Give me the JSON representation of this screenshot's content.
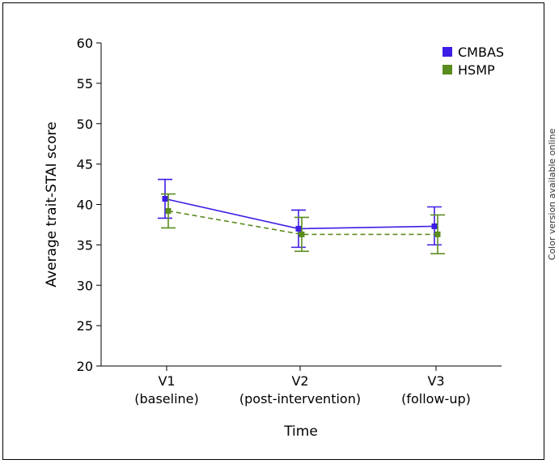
{
  "side_note": "Color version available online",
  "chart_data": {
    "type": "line",
    "xlabel": "Time",
    "ylabel": "Average trait-STAI score",
    "ylim": [
      20,
      60
    ],
    "yticks": [
      20,
      25,
      30,
      35,
      40,
      45,
      50,
      55,
      60
    ],
    "categories": [
      [
        "V1",
        "(baseline)"
      ],
      [
        "V2",
        "(post-intervention)"
      ],
      [
        "V3",
        "(follow-up)"
      ]
    ],
    "legend_position": "top-right",
    "series": [
      {
        "name": "CMBAS",
        "color": "#3d1ee6",
        "line_style": "solid",
        "values": [
          40.7,
          37.0,
          37.3
        ],
        "err_low": [
          38.3,
          34.7,
          35.0
        ],
        "err_high": [
          43.1,
          39.3,
          39.7
        ]
      },
      {
        "name": "HSMP",
        "color": "#5b8c1e",
        "line_style": "dashed",
        "values": [
          39.2,
          36.3,
          36.3
        ],
        "err_low": [
          37.1,
          34.2,
          33.9
        ],
        "err_high": [
          41.3,
          38.4,
          38.7
        ]
      }
    ]
  }
}
